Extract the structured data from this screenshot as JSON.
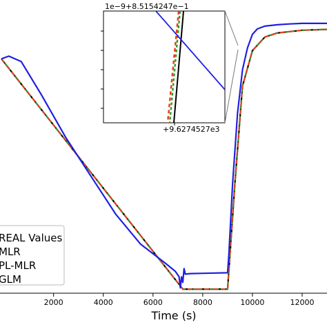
{
  "chart_data": {
    "type": "line",
    "xlabel": "Time (s)",
    "ylabel": "",
    "title": "",
    "xlim": [
      -100,
      13000
    ],
    "ylim": [
      0,
      1
    ],
    "x_ticks": [
      2000,
      4000,
      6000,
      8000,
      10000,
      12000
    ],
    "x_tick_labels": [
      "2000",
      "4000",
      "6000",
      "8000",
      "10000",
      "12000"
    ],
    "grid": false,
    "legend": {
      "placement": "lower-left",
      "entries": [
        "REAL Values",
        "MLR",
        "PL-MLR",
        "GLM"
      ]
    },
    "series": [
      {
        "name": "REAL Values",
        "color": "#000000",
        "style": "solid",
        "x": [
          -100,
          7200,
          9000,
          9300,
          9600,
          10000,
          10500,
          11000,
          12000,
          13000
        ],
        "y": [
          0.86,
          0.015,
          0.015,
          0.41,
          0.76,
          0.89,
          0.94,
          0.955,
          0.965,
          0.968
        ]
      },
      {
        "name": "MLR",
        "color": "#2ca02c",
        "style": "dashed",
        "x": [
          -100,
          7200,
          9000,
          9300,
          9600,
          10000,
          10500,
          11000,
          12000,
          13000
        ],
        "y": [
          0.86,
          0.015,
          0.015,
          0.41,
          0.76,
          0.89,
          0.94,
          0.955,
          0.965,
          0.968
        ]
      },
      {
        "name": "PL-MLR",
        "color": "#e8401a",
        "style": "dashed",
        "x": [
          -100,
          7200,
          9000,
          9300,
          9600,
          10000,
          10500,
          11000,
          12000,
          13000
        ],
        "y": [
          0.86,
          0.015,
          0.015,
          0.41,
          0.76,
          0.89,
          0.94,
          0.955,
          0.965,
          0.968
        ]
      },
      {
        "name": "GLM",
        "color": "#1f1fe0",
        "style": "solid",
        "x": [
          -100,
          200,
          700,
          1500,
          2500,
          3500,
          4500,
          5500,
          6500,
          6900,
          7050,
          7100,
          7150,
          7200,
          7250,
          7300,
          7500,
          8000,
          9000,
          9050,
          9200,
          9400,
          9600,
          9800,
          10000,
          10200,
          10500,
          11000,
          11500,
          12000,
          13000
        ],
        "y": [
          0.86,
          0.87,
          0.85,
          0.73,
          0.57,
          0.43,
          0.29,
          0.18,
          0.11,
          0.08,
          0.06,
          0.02,
          0.06,
          0.04,
          0.09,
          0.07,
          0.072,
          0.073,
          0.075,
          0.14,
          0.4,
          0.66,
          0.82,
          0.9,
          0.95,
          0.97,
          0.98,
          0.985,
          0.988,
          0.99,
          0.99
        ]
      }
    ],
    "inset": {
      "offset_label_top": "1e−9+8.5154247e−1",
      "offset_label_bottom": "+9.6274527e3"
    }
  }
}
